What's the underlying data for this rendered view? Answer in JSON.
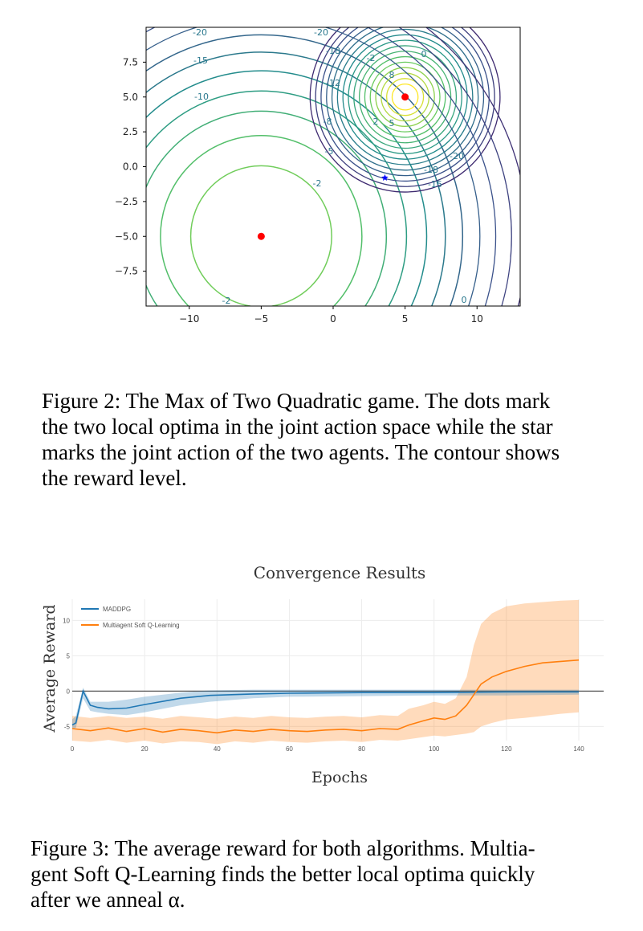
{
  "figure2": {
    "chart_data": {
      "type": "contour",
      "title": "",
      "xlabel": "",
      "ylabel": "",
      "xlim": [
        -13,
        13
      ],
      "ylim": [
        -10,
        10
      ],
      "x_ticks": [
        "−10",
        "−5",
        "0",
        "5",
        "10"
      ],
      "y_ticks": [
        "7.5",
        "5.0",
        "2.5",
        "0.0",
        "−2.5",
        "−5.0",
        "−7.5"
      ],
      "local_optima": [
        {
          "x": -5,
          "y": -5
        },
        {
          "x": 5,
          "y": 5
        }
      ],
      "joint_action": {
        "x": 3.6,
        "y": -0.8
      },
      "contour_labels": [
        "-20",
        "-15",
        "-10",
        "-8",
        "-5",
        "-2",
        "-20",
        "-18",
        "-12",
        "8",
        "5",
        "2",
        "0",
        "-2",
        "-20",
        "-18",
        "-15",
        "0",
        "-2"
      ],
      "colors": {
        "optima": "#ff0000",
        "joint_action": "#0000ff",
        "low": "#3b518b",
        "high": "#fde725"
      }
    },
    "caption_lines": [
      "Figure 2: The Max of Two Quadratic game. The dots mark",
      "the two local optima in the joint action space while the star",
      "marks the joint action of the two agents. The contour shows",
      "the reward level."
    ]
  },
  "figure3": {
    "chart_data": {
      "type": "line",
      "title": "Convergence Results",
      "xlabel": "Epochs",
      "ylabel": "Average Reward",
      "xlim": [
        0,
        140
      ],
      "ylim": [
        -7,
        13
      ],
      "x_ticks": [
        "0",
        "20",
        "40",
        "60",
        "80",
        "100",
        "120",
        "140"
      ],
      "y_ticks": [
        "10",
        "5",
        "0",
        "-5"
      ],
      "legend_position": "top-left",
      "series": [
        {
          "name": "MADDPG",
          "color": "#1f77b4",
          "x": [
            0,
            1,
            3,
            5,
            7,
            10,
            15,
            20,
            30,
            38,
            50,
            60,
            80,
            100,
            120,
            140
          ],
          "values": [
            -4.8,
            -4.5,
            0,
            -2.0,
            -2.3,
            -2.5,
            -2.4,
            -1.9,
            -1.0,
            -0.6,
            -0.4,
            -0.3,
            -0.2,
            -0.2,
            -0.1,
            -0.1
          ],
          "band_upper": [
            -4.0,
            -3.5,
            0.5,
            -1.5,
            -1.5,
            -1.5,
            -1.2,
            -0.8,
            -0.2,
            0.1,
            0.2,
            0.2,
            0.2,
            0.2,
            0.2,
            0.2
          ],
          "band_lower": [
            -5.3,
            -5.2,
            -1.0,
            -2.8,
            -3.0,
            -3.2,
            -3.4,
            -3.0,
            -2.0,
            -1.5,
            -1.0,
            -0.8,
            -0.7,
            -0.6,
            -0.6,
            -0.5
          ]
        },
        {
          "name": "Multiagent Soft Q-Learning",
          "color": "#ff7f0e",
          "x": [
            0,
            5,
            10,
            15,
            20,
            25,
            30,
            35,
            40,
            45,
            50,
            55,
            60,
            65,
            70,
            75,
            80,
            85,
            90,
            93,
            97,
            100,
            103,
            106,
            109,
            111,
            113,
            116,
            120,
            125,
            130,
            135,
            140
          ],
          "values": [
            -5.3,
            -5.6,
            -5.2,
            -5.7,
            -5.3,
            -5.8,
            -5.4,
            -5.6,
            -5.9,
            -5.5,
            -5.7,
            -5.4,
            -5.6,
            -5.7,
            -5.5,
            -5.4,
            -5.6,
            -5.3,
            -5.4,
            -4.8,
            -4.2,
            -3.8,
            -4.0,
            -3.5,
            -2.0,
            -0.5,
            1.0,
            2.0,
            2.8,
            3.5,
            4.0,
            4.2,
            4.4
          ],
          "band_upper": [
            -3.5,
            -3.8,
            -3.5,
            -3.8,
            -3.6,
            -3.9,
            -3.5,
            -3.7,
            -3.9,
            -3.6,
            -3.8,
            -3.5,
            -3.7,
            -3.8,
            -3.6,
            -3.5,
            -3.7,
            -3.4,
            -3.5,
            -2.5,
            -2.0,
            -1.5,
            -1.8,
            -1.0,
            2.0,
            6.5,
            9.5,
            11.0,
            12.0,
            12.4,
            12.6,
            12.8,
            12.9
          ],
          "band_lower": [
            -7.0,
            -7.2,
            -6.9,
            -7.3,
            -7.0,
            -7.4,
            -7.1,
            -7.2,
            -7.5,
            -7.1,
            -7.3,
            -7.0,
            -7.2,
            -7.3,
            -7.1,
            -7.0,
            -7.2,
            -6.9,
            -7.0,
            -6.8,
            -6.5,
            -6.3,
            -6.4,
            -6.2,
            -6.0,
            -5.8,
            -5.0,
            -4.5,
            -4.0,
            -3.8,
            -3.5,
            -3.2,
            -3.0
          ]
        }
      ]
    },
    "caption_lines": [
      "Figure 3: The average reward for both algorithms. Multia-",
      "gent Soft Q-Learning finds the better local optima quickly",
      "after we anneal α."
    ]
  }
}
